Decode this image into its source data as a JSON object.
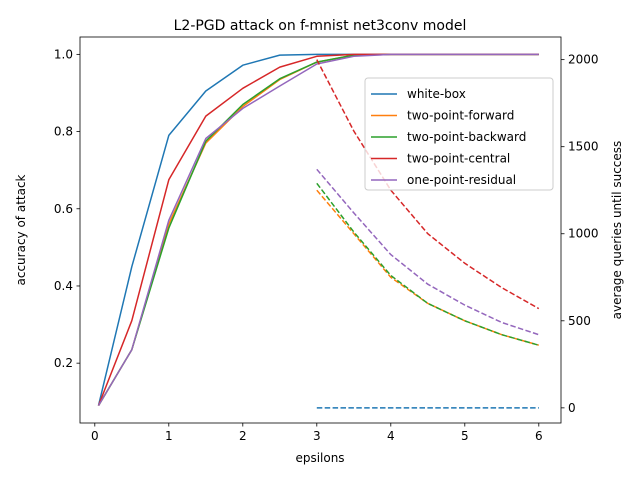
{
  "chart_data": {
    "type": "line",
    "title": "L2-PGD attack on f-mnist net3conv model",
    "xlabel": "epsilons",
    "ylabel": "accuracy of attack",
    "y2label": "average queries until success",
    "xlim": [
      -0.2,
      6.3
    ],
    "ylim": [
      0.045,
      1.045
    ],
    "y2lim": [
      -87,
      2130
    ],
    "xticks": [
      0,
      1,
      2,
      3,
      4,
      5,
      6
    ],
    "yticks": [
      0.2,
      0.4,
      0.6,
      0.8,
      1.0
    ],
    "y2ticks": [
      0,
      500,
      1000,
      1500,
      2000
    ],
    "legend_position": "center-right",
    "grid": false,
    "series": [
      {
        "name": "white-box",
        "color": "#1f77b4",
        "x": [
          0.05,
          0.5,
          1.0,
          1.5,
          2.0,
          2.5,
          3.0,
          3.5,
          4.0,
          4.5,
          5.0,
          5.5,
          6.0
        ],
        "accuracy": [
          0.09,
          0.45,
          0.79,
          0.905,
          0.972,
          0.998,
          1.0,
          1.0,
          1.0,
          1.0,
          1.0,
          1.0,
          1.0
        ],
        "queries_x": [
          3.0,
          3.5,
          4.0,
          4.5,
          5.0,
          5.5,
          6.0
        ],
        "queries": [
          0,
          0,
          0,
          0,
          0,
          0,
          0
        ]
      },
      {
        "name": "two-point-forward",
        "color": "#ff7f0e",
        "x": [
          0.05,
          0.5,
          1.0,
          1.5,
          2.0,
          2.5,
          3.0,
          3.5,
          4.0,
          4.5,
          5.0,
          5.5,
          6.0
        ],
        "accuracy": [
          0.09,
          0.235,
          0.56,
          0.77,
          0.865,
          0.935,
          0.98,
          0.998,
          1.0,
          1.0,
          1.0,
          1.0,
          1.0
        ],
        "queries_x": [
          3.0,
          3.5,
          4.0,
          4.5,
          5.0,
          5.5,
          6.0
        ],
        "queries": [
          1250,
          1000,
          750,
          600,
          500,
          420,
          360
        ]
      },
      {
        "name": "two-point-backward",
        "color": "#2ca02c",
        "x": [
          0.05,
          0.5,
          1.0,
          1.5,
          2.0,
          2.5,
          3.0,
          3.5,
          4.0,
          4.5,
          5.0,
          5.5,
          6.0
        ],
        "accuracy": [
          0.09,
          0.235,
          0.55,
          0.775,
          0.87,
          0.937,
          0.98,
          0.998,
          1.0,
          1.0,
          1.0,
          1.0,
          1.0
        ],
        "queries_x": [
          3.0,
          3.5,
          4.0,
          4.5,
          5.0,
          5.5,
          6.0
        ],
        "queries": [
          1290,
          1010,
          760,
          600,
          500,
          420,
          360
        ]
      },
      {
        "name": "two-point-central",
        "color": "#d62728",
        "x": [
          0.05,
          0.5,
          1.0,
          1.5,
          2.0,
          2.5,
          3.0,
          3.5,
          4.0,
          4.5,
          5.0,
          5.5,
          6.0
        ],
        "accuracy": [
          0.09,
          0.31,
          0.675,
          0.84,
          0.912,
          0.967,
          0.995,
          1.0,
          1.0,
          1.0,
          1.0,
          1.0,
          1.0
        ],
        "queries_x": [
          3.0,
          3.5,
          4.0,
          4.5,
          5.0,
          5.5,
          6.0
        ],
        "queries": [
          2000,
          1590,
          1250,
          1000,
          830,
          690,
          570
        ]
      },
      {
        "name": "one-point-residual",
        "color": "#9467bd",
        "x": [
          0.05,
          0.5,
          1.0,
          1.5,
          2.0,
          2.5,
          3.0,
          3.5,
          4.0,
          4.5,
          5.0,
          5.5,
          6.0
        ],
        "accuracy": [
          0.09,
          0.235,
          0.57,
          0.782,
          0.86,
          0.918,
          0.975,
          0.995,
          1.0,
          1.0,
          1.0,
          1.0,
          1.0
        ],
        "queries_x": [
          3.0,
          3.5,
          4.0,
          4.5,
          5.0,
          5.5,
          6.0
        ],
        "queries": [
          1370,
          1120,
          880,
          710,
          590,
          490,
          420
        ]
      }
    ]
  }
}
